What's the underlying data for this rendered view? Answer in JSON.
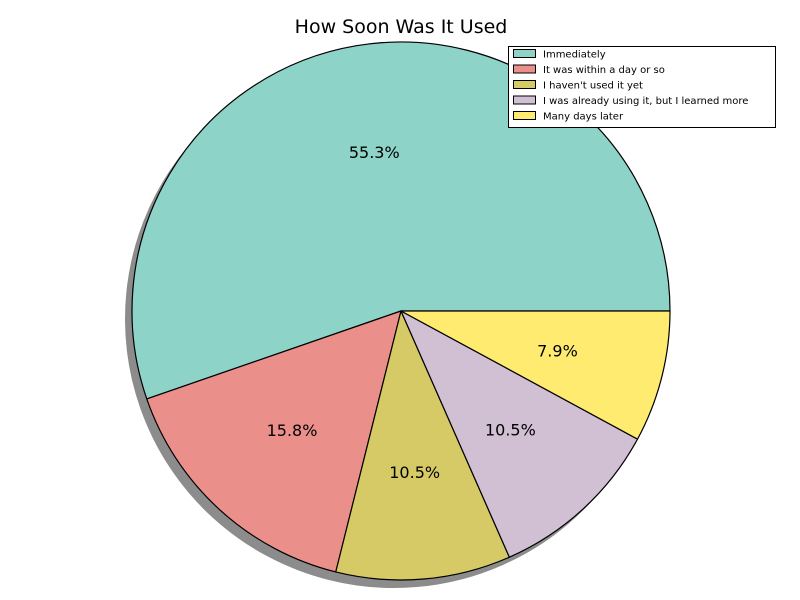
{
  "chart_data": {
    "type": "pie",
    "title": "How Soon Was It Used",
    "categories": [
      "Immediately",
      "It was within a day or so",
      "I haven't used it yet",
      "I was already using it, but I learned more",
      "Many days later"
    ],
    "values": [
      55.3,
      15.8,
      10.5,
      10.5,
      7.9
    ],
    "value_labels": [
      "55.3%",
      "15.8%",
      "10.5%",
      "10.5%",
      "7.9%"
    ],
    "colors": [
      "#8dd3c7",
      "#eb8f8b",
      "#d6ca67",
      "#d1bfd3",
      "#ffeb70"
    ],
    "start_angle_deg": 0,
    "direction": "counterclockwise",
    "shadow": true,
    "legend_position": "top-right"
  }
}
